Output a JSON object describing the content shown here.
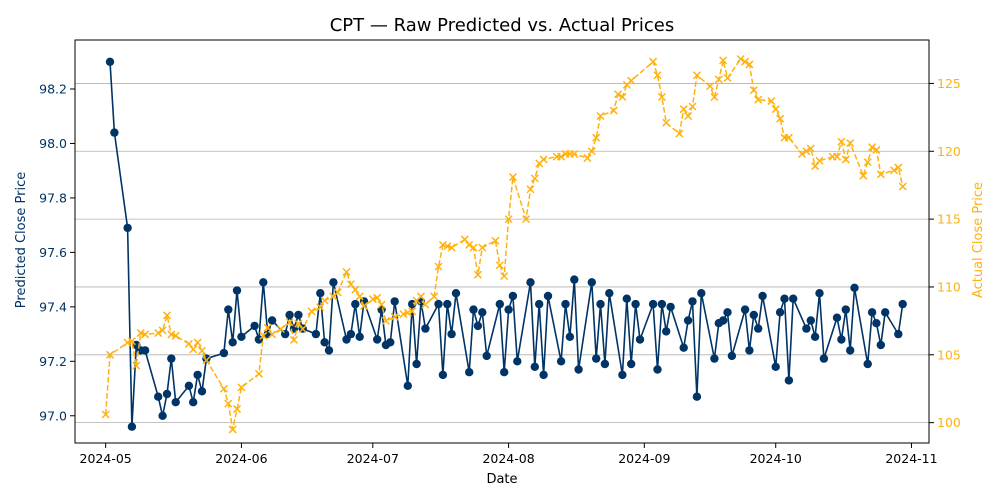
{
  "chart_data": {
    "type": "line",
    "title": "CPT — Raw Predicted vs. Actual Prices",
    "xlabel": "Date",
    "ylabel_left": "Predicted Close Price",
    "ylabel_right": "Actual Close Price",
    "xlim": [
      "2024-04-24",
      "2024-11-05"
    ],
    "ylim_left": [
      96.9,
      98.38
    ],
    "ylim_right": [
      98.5,
      128.2
    ],
    "x_ticks": [
      "2024-05-01",
      "2024-06-01",
      "2024-07-01",
      "2024-08-01",
      "2024-09-01",
      "2024-10-01",
      "2024-11-01"
    ],
    "x_tick_labels": [
      "2024-05",
      "2024-06",
      "2024-07",
      "2024-08",
      "2024-09",
      "2024-10",
      "2024-11"
    ],
    "y_ticks_left": [
      97.0,
      97.2,
      97.4,
      97.6,
      97.8,
      98.0,
      98.2
    ],
    "y_tick_labels_left": [
      "97.0",
      "97.2",
      "97.4",
      "97.6",
      "97.8",
      "98.0",
      "98.2"
    ],
    "y_ticks_right": [
      100,
      105,
      110,
      115,
      120,
      125
    ],
    "y_tick_labels_right": [
      "100",
      "105",
      "110",
      "115",
      "120",
      "125"
    ],
    "grid": "horizontal (right axis)",
    "colors": {
      "predicted": "#003366",
      "actual": "#FFB20F",
      "grid": "#b0b0b0"
    },
    "series": [
      {
        "name": "",
        "axis": "left",
        "style": "solid line with circle markers",
        "points": [
          [
            "2024-05-02",
            98.3
          ],
          [
            "2024-05-03",
            98.04
          ],
          [
            "2024-05-06",
            97.69
          ],
          [
            "2024-05-07",
            96.96
          ],
          [
            "2024-05-08",
            97.26
          ],
          [
            "2024-05-09",
            97.24
          ],
          [
            "2024-05-10",
            97.24
          ],
          [
            "2024-05-13",
            97.07
          ],
          [
            "2024-05-14",
            97.0
          ],
          [
            "2024-05-15",
            97.08
          ],
          [
            "2024-05-16",
            97.21
          ],
          [
            "2024-05-17",
            97.05
          ],
          [
            "2024-05-20",
            97.11
          ],
          [
            "2024-05-21",
            97.05
          ],
          [
            "2024-05-22",
            97.15
          ],
          [
            "2024-05-23",
            97.09
          ],
          [
            "2024-05-24",
            97.21
          ],
          [
            "2024-05-28",
            97.23
          ],
          [
            "2024-05-29",
            97.39
          ],
          [
            "2024-05-30",
            97.27
          ],
          [
            "2024-05-31",
            97.46
          ],
          [
            "2024-06-01",
            97.29
          ],
          [
            "2024-06-04",
            97.33
          ],
          [
            "2024-06-05",
            97.28
          ],
          [
            "2024-06-06",
            97.49
          ],
          [
            "2024-06-07",
            97.3
          ],
          [
            "2024-06-08",
            97.35
          ],
          [
            "2024-06-11",
            97.3
          ],
          [
            "2024-06-12",
            97.37
          ],
          [
            "2024-06-13",
            97.32
          ],
          [
            "2024-06-14",
            97.37
          ],
          [
            "2024-06-15",
            97.32
          ],
          [
            "2024-06-18",
            97.3
          ],
          [
            "2024-06-19",
            97.45
          ],
          [
            "2024-06-20",
            97.27
          ],
          [
            "2024-06-21",
            97.24
          ],
          [
            "2024-06-22",
            97.49
          ],
          [
            "2024-06-25",
            97.28
          ],
          [
            "2024-06-26",
            97.3
          ],
          [
            "2024-06-27",
            97.41
          ],
          [
            "2024-06-28",
            97.29
          ],
          [
            "2024-06-29",
            97.42
          ],
          [
            "2024-07-02",
            97.28
          ],
          [
            "2024-07-03",
            97.39
          ],
          [
            "2024-07-04",
            97.26
          ],
          [
            "2024-07-05",
            97.27
          ],
          [
            "2024-07-06",
            97.42
          ],
          [
            "2024-07-09",
            97.11
          ],
          [
            "2024-07-10",
            97.41
          ],
          [
            "2024-07-11",
            97.19
          ],
          [
            "2024-07-12",
            97.42
          ],
          [
            "2024-07-13",
            97.32
          ],
          [
            "2024-07-16",
            97.41
          ],
          [
            "2024-07-17",
            97.15
          ],
          [
            "2024-07-18",
            97.41
          ],
          [
            "2024-07-19",
            97.3
          ],
          [
            "2024-07-20",
            97.45
          ],
          [
            "2024-07-23",
            97.16
          ],
          [
            "2024-07-24",
            97.39
          ],
          [
            "2024-07-25",
            97.33
          ],
          [
            "2024-07-26",
            97.38
          ],
          [
            "2024-07-27",
            97.22
          ],
          [
            "2024-07-30",
            97.41
          ],
          [
            "2024-07-31",
            97.16
          ],
          [
            "2024-08-01",
            97.39
          ],
          [
            "2024-08-02",
            97.44
          ],
          [
            "2024-08-03",
            97.2
          ],
          [
            "2024-08-06",
            97.49
          ],
          [
            "2024-08-07",
            97.18
          ],
          [
            "2024-08-08",
            97.41
          ],
          [
            "2024-08-09",
            97.15
          ],
          [
            "2024-08-10",
            97.44
          ],
          [
            "2024-08-13",
            97.2
          ],
          [
            "2024-08-14",
            97.41
          ],
          [
            "2024-08-15",
            97.29
          ],
          [
            "2024-08-16",
            97.5
          ],
          [
            "2024-08-17",
            97.17
          ],
          [
            "2024-08-20",
            97.49
          ],
          [
            "2024-08-21",
            97.21
          ],
          [
            "2024-08-22",
            97.41
          ],
          [
            "2024-08-23",
            97.19
          ],
          [
            "2024-08-24",
            97.45
          ],
          [
            "2024-08-27",
            97.15
          ],
          [
            "2024-08-28",
            97.43
          ],
          [
            "2024-08-29",
            97.19
          ],
          [
            "2024-08-30",
            97.41
          ],
          [
            "2024-08-31",
            97.28
          ],
          [
            "2024-09-03",
            97.41
          ],
          [
            "2024-09-04",
            97.17
          ],
          [
            "2024-09-05",
            97.41
          ],
          [
            "2024-09-06",
            97.31
          ],
          [
            "2024-09-07",
            97.4
          ],
          [
            "2024-09-10",
            97.25
          ],
          [
            "2024-09-11",
            97.35
          ],
          [
            "2024-09-12",
            97.42
          ],
          [
            "2024-09-13",
            97.07
          ],
          [
            "2024-09-14",
            97.45
          ],
          [
            "2024-09-17",
            97.21
          ],
          [
            "2024-09-18",
            97.34
          ],
          [
            "2024-09-19",
            97.35
          ],
          [
            "2024-09-20",
            97.38
          ],
          [
            "2024-09-21",
            97.22
          ],
          [
            "2024-09-24",
            97.39
          ],
          [
            "2024-09-25",
            97.24
          ],
          [
            "2024-09-26",
            97.37
          ],
          [
            "2024-09-27",
            97.32
          ],
          [
            "2024-09-28",
            97.44
          ],
          [
            "2024-10-01",
            97.18
          ],
          [
            "2024-10-02",
            97.38
          ],
          [
            "2024-10-03",
            97.43
          ],
          [
            "2024-10-04",
            97.13
          ],
          [
            "2024-10-05",
            97.43
          ],
          [
            "2024-10-08",
            97.32
          ],
          [
            "2024-10-09",
            97.35
          ],
          [
            "2024-10-10",
            97.29
          ],
          [
            "2024-10-11",
            97.45
          ],
          [
            "2024-10-12",
            97.21
          ],
          [
            "2024-10-15",
            97.36
          ],
          [
            "2024-10-16",
            97.28
          ],
          [
            "2024-10-17",
            97.39
          ],
          [
            "2024-10-18",
            97.24
          ],
          [
            "2024-10-19",
            97.47
          ],
          [
            "2024-10-22",
            97.19
          ],
          [
            "2024-10-23",
            97.38
          ],
          [
            "2024-10-24",
            97.34
          ],
          [
            "2024-10-25",
            97.26
          ],
          [
            "2024-10-26",
            97.38
          ],
          [
            "2024-10-29",
            97.3
          ],
          [
            "2024-10-30",
            97.41
          ]
        ]
      },
      {
        "name": "",
        "axis": "right",
        "style": "dashed line with x markers",
        "points": [
          [
            "2024-05-01",
            100.6
          ],
          [
            "2024-05-02",
            105.0
          ],
          [
            "2024-05-06",
            105.9
          ],
          [
            "2024-05-07",
            106.0
          ],
          [
            "2024-05-08",
            104.2
          ],
          [
            "2024-05-09",
            106.6
          ],
          [
            "2024-05-10",
            106.5
          ],
          [
            "2024-05-13",
            106.6
          ],
          [
            "2024-05-14",
            106.8
          ],
          [
            "2024-05-15",
            107.9
          ],
          [
            "2024-05-16",
            106.5
          ],
          [
            "2024-05-17",
            106.4
          ],
          [
            "2024-05-20",
            105.8
          ],
          [
            "2024-05-21",
            105.4
          ],
          [
            "2024-05-22",
            105.9
          ],
          [
            "2024-05-23",
            105.3
          ],
          [
            "2024-05-24",
            104.6
          ],
          [
            "2024-05-28",
            102.5
          ],
          [
            "2024-05-29",
            101.4
          ],
          [
            "2024-05-30",
            99.5
          ],
          [
            "2024-05-31",
            101.0
          ],
          [
            "2024-06-01",
            102.6
          ],
          [
            "2024-06-05",
            103.6
          ],
          [
            "2024-06-06",
            106.4
          ],
          [
            "2024-06-07",
            107.0
          ],
          [
            "2024-06-08",
            106.5
          ],
          [
            "2024-06-10",
            106.9
          ],
          [
            "2024-06-12",
            107.4
          ],
          [
            "2024-06-13",
            106.1
          ],
          [
            "2024-06-14",
            107.3
          ],
          [
            "2024-06-15",
            106.9
          ],
          [
            "2024-06-17",
            108.2
          ],
          [
            "2024-06-19",
            108.5
          ],
          [
            "2024-06-20",
            109.0
          ],
          [
            "2024-06-22",
            109.3
          ],
          [
            "2024-06-23",
            109.6
          ],
          [
            "2024-06-25",
            111.1
          ],
          [
            "2024-06-26",
            110.2
          ],
          [
            "2024-06-27",
            109.8
          ],
          [
            "2024-06-28",
            109.3
          ],
          [
            "2024-06-29",
            108.6
          ],
          [
            "2024-07-01",
            109.1
          ],
          [
            "2024-07-02",
            109.2
          ],
          [
            "2024-07-03",
            108.7
          ],
          [
            "2024-07-04",
            107.5
          ],
          [
            "2024-07-06",
            107.8
          ],
          [
            "2024-07-08",
            108.0
          ],
          [
            "2024-07-09",
            108.1
          ],
          [
            "2024-07-10",
            108.2
          ],
          [
            "2024-07-11",
            109.0
          ],
          [
            "2024-07-12",
            109.3
          ],
          [
            "2024-07-13",
            108.7
          ],
          [
            "2024-07-15",
            109.3
          ],
          [
            "2024-07-16",
            111.5
          ],
          [
            "2024-07-17",
            113.1
          ],
          [
            "2024-07-18",
            113.0
          ],
          [
            "2024-07-19",
            112.9
          ],
          [
            "2024-07-22",
            113.5
          ],
          [
            "2024-07-23",
            113.1
          ],
          [
            "2024-07-24",
            112.9
          ],
          [
            "2024-07-25",
            110.9
          ],
          [
            "2024-07-26",
            112.9
          ],
          [
            "2024-07-29",
            113.4
          ],
          [
            "2024-07-30",
            111.6
          ],
          [
            "2024-07-31",
            110.8
          ],
          [
            "2024-08-01",
            115.0
          ],
          [
            "2024-08-02",
            118.1
          ],
          [
            "2024-08-05",
            115.0
          ],
          [
            "2024-08-06",
            117.2
          ],
          [
            "2024-08-07",
            118.0
          ],
          [
            "2024-08-08",
            119.1
          ],
          [
            "2024-08-09",
            119.4
          ],
          [
            "2024-08-12",
            119.6
          ],
          [
            "2024-08-13",
            119.6
          ],
          [
            "2024-08-14",
            119.8
          ],
          [
            "2024-08-15",
            119.8
          ],
          [
            "2024-08-16",
            119.8
          ],
          [
            "2024-08-19",
            119.5
          ],
          [
            "2024-08-20",
            120.0
          ],
          [
            "2024-08-21",
            121.0
          ],
          [
            "2024-08-22",
            122.6
          ],
          [
            "2024-08-25",
            123.0
          ],
          [
            "2024-08-26",
            124.2
          ],
          [
            "2024-08-27",
            124.0
          ],
          [
            "2024-08-28",
            124.9
          ],
          [
            "2024-08-29",
            125.2
          ],
          [
            "2024-09-03",
            126.6
          ],
          [
            "2024-09-04",
            125.6
          ],
          [
            "2024-09-05",
            124.0
          ],
          [
            "2024-09-06",
            122.1
          ],
          [
            "2024-09-09",
            121.3
          ],
          [
            "2024-09-10",
            123.1
          ],
          [
            "2024-09-11",
            122.6
          ],
          [
            "2024-09-12",
            123.3
          ],
          [
            "2024-09-13",
            125.6
          ],
          [
            "2024-09-16",
            124.8
          ],
          [
            "2024-09-17",
            124.0
          ],
          [
            "2024-09-18",
            125.3
          ],
          [
            "2024-09-19",
            126.7
          ],
          [
            "2024-09-20",
            125.4
          ],
          [
            "2024-09-23",
            126.8
          ],
          [
            "2024-09-24",
            126.6
          ],
          [
            "2024-09-25",
            126.4
          ],
          [
            "2024-09-26",
            124.5
          ],
          [
            "2024-09-27",
            123.8
          ],
          [
            "2024-09-30",
            123.7
          ],
          [
            "2024-10-01",
            123.1
          ],
          [
            "2024-10-02",
            122.4
          ],
          [
            "2024-10-03",
            121.0
          ],
          [
            "2024-10-04",
            121.0
          ],
          [
            "2024-10-07",
            119.8
          ],
          [
            "2024-10-08",
            120.0
          ],
          [
            "2024-10-09",
            120.2
          ],
          [
            "2024-10-10",
            118.9
          ],
          [
            "2024-10-11",
            119.3
          ],
          [
            "2024-10-14",
            119.6
          ],
          [
            "2024-10-15",
            119.6
          ],
          [
            "2024-10-16",
            120.7
          ],
          [
            "2024-10-17",
            119.4
          ],
          [
            "2024-10-18",
            120.6
          ],
          [
            "2024-10-21",
            118.2
          ],
          [
            "2024-10-22",
            119.2
          ],
          [
            "2024-10-23",
            120.3
          ],
          [
            "2024-10-24",
            120.1
          ],
          [
            "2024-10-25",
            118.3
          ],
          [
            "2024-10-28",
            118.6
          ],
          [
            "2024-10-29",
            118.8
          ],
          [
            "2024-10-30",
            117.4
          ]
        ]
      }
    ]
  }
}
